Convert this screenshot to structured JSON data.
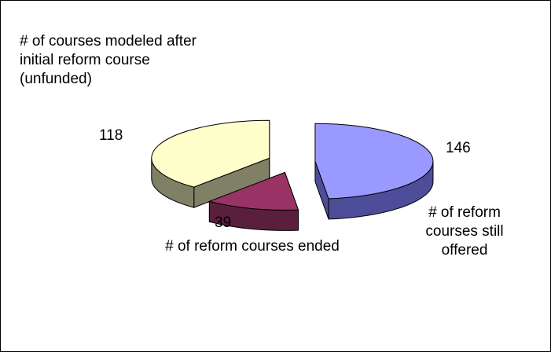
{
  "chart_data": {
    "type": "pie",
    "categories": [
      "# of reform courses still offered",
      "# of reform courses ended",
      "# of courses modeled after initial reform course (unfunded)"
    ],
    "values": [
      146,
      39,
      118
    ],
    "colors": [
      "#9999ff",
      "#993366",
      "#ffffcc"
    ],
    "side_colors": [
      "#4d4d99",
      "#5a1f3c",
      "#808066"
    ]
  }
}
